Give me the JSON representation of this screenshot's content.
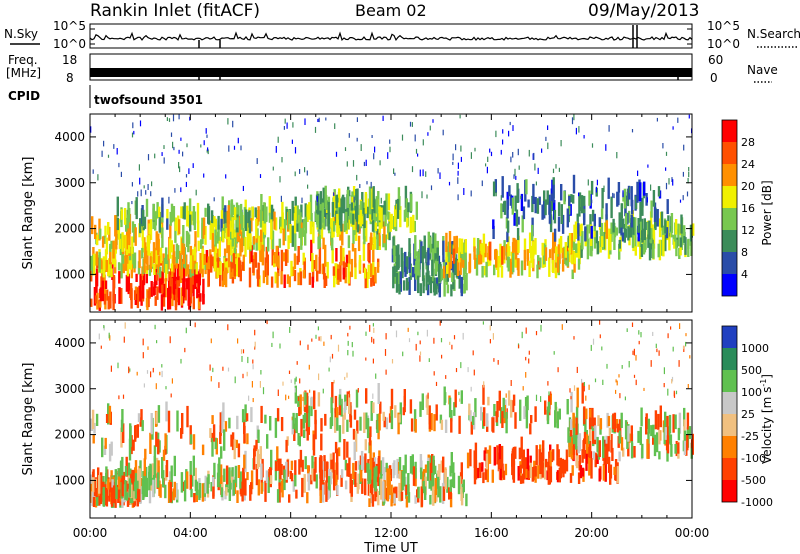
{
  "header": {
    "station": "Rankin Inlet (fitACF)",
    "beam": "Beam 02",
    "date": "09/May/2013"
  },
  "info_panels": {
    "nsky": {
      "label": "N.Sky",
      "ticks": [
        "10^5",
        "10^0"
      ]
    },
    "nsearch": {
      "label": "N.Search",
      "ticks": [
        "10^5",
        "10^0"
      ]
    },
    "freq": {
      "label_line1": "Freq.",
      "label_line2": "[MHz]",
      "ticks": [
        "18",
        "8"
      ]
    },
    "nave": {
      "label": "Nave",
      "ticks": [
        "60",
        "0"
      ]
    },
    "cpid": {
      "label": "CPID",
      "value": "twofsound 3501"
    }
  },
  "chart_data": [
    {
      "type": "heatmap",
      "title": "",
      "xlabel": "Time UT",
      "ylabel": "Slant Range [km]",
      "x_ticks": [
        "00:00",
        "04:00",
        "08:00",
        "12:00",
        "16:00",
        "20:00",
        "00:00"
      ],
      "xlim_hours": [
        0,
        24
      ],
      "y_ticks": [
        "1000",
        "2000",
        "3000",
        "4000"
      ],
      "ylim": [
        180,
        4500
      ],
      "colorbar": {
        "label": "Power [dB]",
        "ticks": [
          "4",
          "8",
          "12",
          "16",
          "20",
          "24",
          "28"
        ],
        "range": [
          0,
          30
        ],
        "colors": [
          "#0000ff",
          "#2a4da8",
          "#3c8c5a",
          "#78c850",
          "#f0f000",
          "#ff9000",
          "#ff5000",
          "#ff0000"
        ]
      },
      "echo_regions": [
        {
          "t0": 0.0,
          "t1": 4.5,
          "r0": 200,
          "r1": 900,
          "value": 26
        },
        {
          "t0": 0.0,
          "t1": 6.0,
          "r0": 900,
          "r1": 1250,
          "value": 18
        },
        {
          "t0": 0.0,
          "t1": 7.0,
          "r0": 1300,
          "r1": 1900,
          "value": 17
        },
        {
          "t0": 1.0,
          "t1": 11.0,
          "r0": 1900,
          "r1": 2300,
          "value": 12
        },
        {
          "t0": 4.5,
          "t1": 11.5,
          "r0": 700,
          "r1": 1300,
          "value": 22
        },
        {
          "t0": 5.0,
          "t1": 12.0,
          "r0": 1500,
          "r1": 2200,
          "value": 16
        },
        {
          "t0": 9.0,
          "t1": 13.0,
          "r0": 1900,
          "r1": 2500,
          "value": 13
        },
        {
          "t0": 12.0,
          "t1": 15.0,
          "r0": 500,
          "r1": 1500,
          "value": 10
        },
        {
          "t0": 14.0,
          "t1": 19.5,
          "r0": 900,
          "r1": 1500,
          "value": 18
        },
        {
          "t0": 19.0,
          "t1": 24.0,
          "r0": 1300,
          "r1": 2000,
          "value": 14
        },
        {
          "t0": 16.0,
          "t1": 23.0,
          "r0": 1700,
          "r1": 2800,
          "value": 8
        },
        {
          "t0": 0.0,
          "t1": 24.0,
          "r0": 2500,
          "r1": 4500,
          "value": 6
        }
      ]
    },
    {
      "type": "heatmap",
      "title": "",
      "xlabel": "Time UT",
      "ylabel": "Slant Range [km]",
      "x_ticks": [
        "00:00",
        "04:00",
        "08:00",
        "12:00",
        "16:00",
        "20:00",
        "00:00"
      ],
      "xlim_hours": [
        0,
        24
      ],
      "y_ticks": [
        "1000",
        "2000",
        "3000",
        "4000"
      ],
      "ylim": [
        180,
        4500
      ],
      "colorbar": {
        "label": "Velocity [m s",
        "label_superscript": "-1",
        "label_close": "]",
        "ticks": [
          "1000",
          "500",
          "100",
          "25",
          "-25",
          "-100",
          "-500",
          "-1000"
        ],
        "colors": [
          "#2040c0",
          "#2a8c5a",
          "#60c050",
          "#c8c8c8",
          "#f0c080",
          "#ff8000",
          "#ff4000",
          "#ff0000"
        ]
      },
      "echo_regions": [
        {
          "t0": 0.0,
          "t1": 2.0,
          "r0": 400,
          "r1": 900,
          "value": -100
        },
        {
          "t0": 1.0,
          "t1": 6.0,
          "r0": 500,
          "r1": 1100,
          "value": 100
        },
        {
          "t0": 0.0,
          "t1": 12.0,
          "r0": 1400,
          "r1": 2300,
          "value": 0
        },
        {
          "t0": 6.0,
          "t1": 11.5,
          "r0": 500,
          "r1": 1300,
          "value": -100
        },
        {
          "t0": 11.0,
          "t1": 15.0,
          "r0": 400,
          "r1": 1200,
          "value": 50
        },
        {
          "t0": 15.0,
          "t1": 21.0,
          "r0": 900,
          "r1": 1500,
          "value": -300
        },
        {
          "t0": 19.0,
          "t1": 24.0,
          "r0": 1400,
          "r1": 2200,
          "value": 0
        },
        {
          "t0": 8.0,
          "t1": 20.0,
          "r0": 2000,
          "r1": 2700,
          "value": 0
        },
        {
          "t0": 0.0,
          "t1": 24.0,
          "r0": 2700,
          "r1": 4500,
          "value": -50
        }
      ]
    }
  ]
}
